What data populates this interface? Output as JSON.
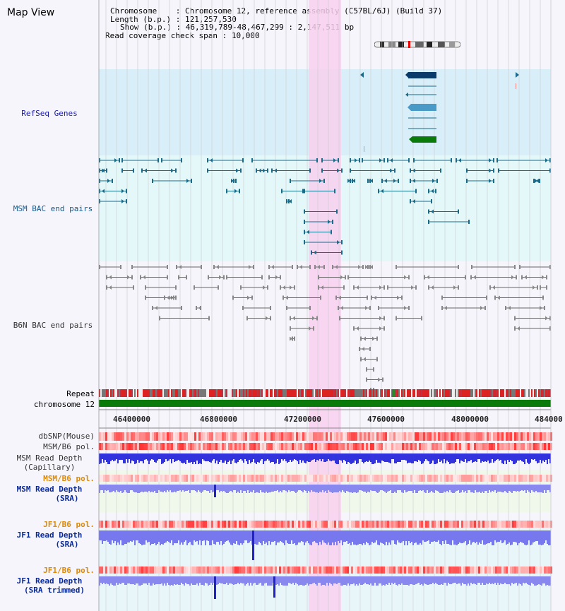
{
  "view_title": "Map View",
  "header": {
    "chromosome_label": "Chromosome",
    "chromosome_value": "Chromosome 12, reference assembly (C57BL/6J) (Build 37)",
    "length_label": "Length (b.p.)",
    "length_value": "121,257,530",
    "show_label": "Show (b.p.)",
    "show_value": "46,319,789-48,467,299 : 2,147,511 bp",
    "coverage_label": "Read coverage check span",
    "coverage_value": "10,000"
  },
  "tracks": {
    "refseq": "RefSeq Genes",
    "msm_bac": "MSM BAC end pairs",
    "b6n_bac": "B6N BAC end pairs",
    "repeat": "Repeat",
    "chromosome": "chromosome 12",
    "dbsnp": "dbSNP(Mouse)",
    "msm_b6_pol": "MSM/B6 pol.",
    "msm_depth_cap_1": "MSM Read Depth",
    "msm_depth_cap_2": "(Capillary)",
    "msm_b6_pol_2": "MSM/B6 pol.",
    "msm_depth_sra_1": "MSM Read Depth",
    "msm_depth_sra_2": "(SRA)",
    "jf1_pol_1": "JF1/B6 pol.",
    "jf1_depth_sra_1": "JF1 Read Depth",
    "jf1_depth_sra_2": "(SRA)",
    "jf1_pol_2": "JF1/B6 pol.",
    "jf1_depth_trim_1": "JF1 Read Depth",
    "jf1_depth_trim_2": "(SRA trimmed)"
  },
  "axis_ticks": [
    "46400000",
    "46800000",
    "47200000",
    "47600000",
    "48000000",
    "484000"
  ],
  "colors": {
    "refseq_bg": "#d8eef8",
    "msm_bg": "#e4f8fa",
    "highlight": "#f8d8f0",
    "msm_feature": "#1a6a8a",
    "b6n_feature": "#666666",
    "gene_dark": "#0a3a6a",
    "gene_light": "#4a9ac8",
    "gene_green": "#0a7a0a",
    "chrom_green": "#0a7a0a",
    "depth_blue": "#3333dd",
    "depth_light": "#8888ee"
  }
}
